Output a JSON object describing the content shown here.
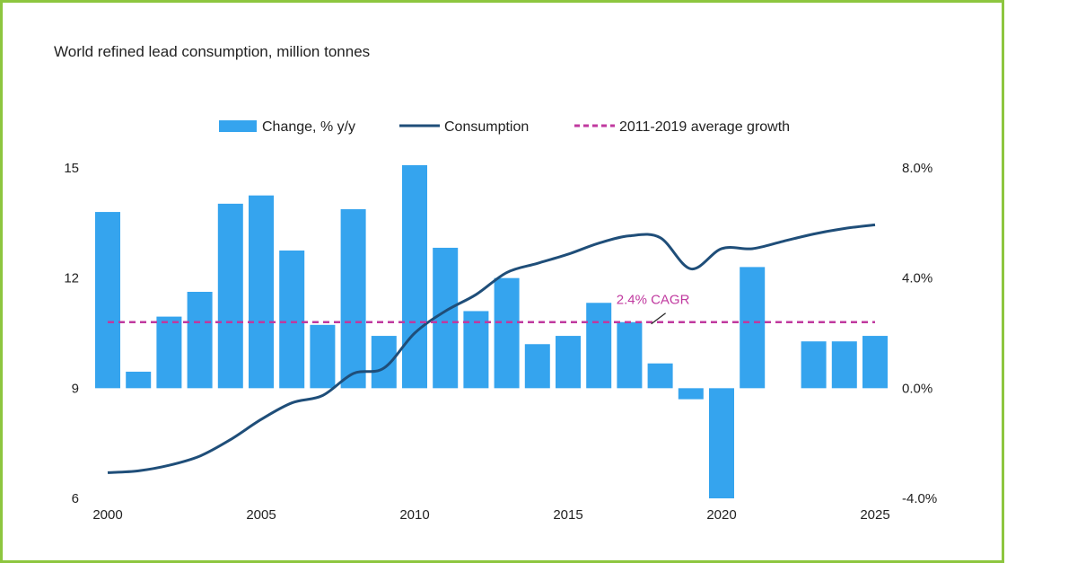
{
  "chart_data": {
    "type": "bar",
    "title": "World refined lead consumption, million tonnes",
    "x": [
      2000,
      2001,
      2002,
      2003,
      2004,
      2005,
      2006,
      2007,
      2008,
      2009,
      2010,
      2011,
      2012,
      2013,
      2014,
      2015,
      2016,
      2017,
      2018,
      2019,
      2020,
      2021,
      2022,
      2023,
      2024,
      2025
    ],
    "x_tick_labels": [
      "2000",
      "2005",
      "2010",
      "2015",
      "2020",
      "2025"
    ],
    "left_axis": {
      "ylim": [
        6,
        15
      ],
      "ticks": [
        "6",
        "9",
        "12",
        "15"
      ]
    },
    "right_axis": {
      "ylim": [
        -4.0,
        8.0
      ],
      "ticks": [
        "-4.0%",
        "0.0%",
        "4.0%",
        "8.0%"
      ]
    },
    "series": [
      {
        "name": "Change, % y/y",
        "type": "bar",
        "axis": "right",
        "color": "#35a4ee",
        "values": [
          6.4,
          0.6,
          2.6,
          3.5,
          6.7,
          7.0,
          5.0,
          2.3,
          6.5,
          1.9,
          8.1,
          5.1,
          2.8,
          4.0,
          1.6,
          1.9,
          3.1,
          2.4,
          0.9,
          -0.4,
          -4.0,
          4.4,
          null,
          1.7,
          1.7,
          1.9
        ]
      },
      {
        "name": "Consumption",
        "type": "line",
        "axis": "left",
        "color": "#1f4e79",
        "values": [
          6.7,
          6.75,
          6.9,
          7.15,
          7.6,
          8.15,
          8.6,
          8.8,
          9.4,
          9.55,
          10.5,
          11.1,
          11.55,
          12.15,
          12.4,
          12.65,
          12.95,
          13.15,
          13.1,
          12.25,
          12.8,
          12.8,
          13.0,
          13.2,
          13.35,
          13.45
        ]
      },
      {
        "name": "2011-2019 average growth",
        "type": "line",
        "style": "dashed",
        "axis": "right",
        "color": "#c0399f",
        "value": 2.4
      }
    ],
    "annotations": [
      {
        "text": "2.4% CAGR",
        "x": 2018,
        "y_right": 3.0
      }
    ],
    "legend": "top",
    "grid": false
  }
}
